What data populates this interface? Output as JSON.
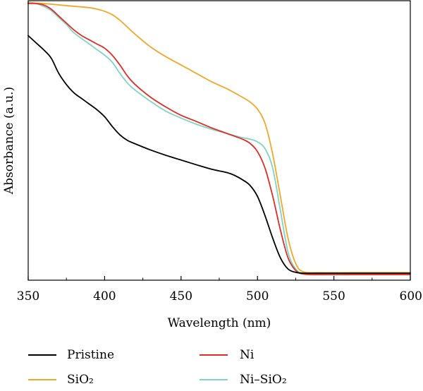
{
  "chart_data": {
    "type": "line",
    "title": "",
    "xlabel": "Wavelength (nm)",
    "ylabel": "Absorbance (a.u.)",
    "xlim": [
      350,
      600
    ],
    "ylim": [
      0,
      1
    ],
    "x_ticks": [
      350,
      400,
      450,
      500,
      550,
      600
    ],
    "x_tick_labels": [
      "350",
      "400",
      "450",
      "500",
      "550",
      "600"
    ],
    "y_ticks_shown": false,
    "grid": false,
    "legend_placement": "bottom",
    "series": [
      {
        "name": "Pristine",
        "color": "#000000",
        "points": [
          [
            350,
            0.875
          ],
          [
            355,
            0.85
          ],
          [
            360,
            0.825
          ],
          [
            365,
            0.795
          ],
          [
            370,
            0.74
          ],
          [
            375,
            0.7
          ],
          [
            380,
            0.67
          ],
          [
            385,
            0.65
          ],
          [
            390,
            0.63
          ],
          [
            395,
            0.61
          ],
          [
            400,
            0.585
          ],
          [
            405,
            0.55
          ],
          [
            410,
            0.52
          ],
          [
            415,
            0.5
          ],
          [
            420,
            0.488
          ],
          [
            430,
            0.466
          ],
          [
            440,
            0.447
          ],
          [
            450,
            0.43
          ],
          [
            460,
            0.413
          ],
          [
            470,
            0.397
          ],
          [
            480,
            0.385
          ],
          [
            485,
            0.375
          ],
          [
            490,
            0.36
          ],
          [
            495,
            0.34
          ],
          [
            500,
            0.3
          ],
          [
            505,
            0.23
          ],
          [
            510,
            0.15
          ],
          [
            515,
            0.08
          ],
          [
            520,
            0.04
          ],
          [
            525,
            0.028
          ],
          [
            530,
            0.025
          ],
          [
            540,
            0.025
          ],
          [
            560,
            0.025
          ],
          [
            580,
            0.025
          ],
          [
            600,
            0.025
          ]
        ]
      },
      {
        "name": "SiO₂",
        "color": "#f0a82a",
        "points": [
          [
            350,
            0.992
          ],
          [
            360,
            0.99
          ],
          [
            370,
            0.985
          ],
          [
            380,
            0.98
          ],
          [
            390,
            0.975
          ],
          [
            395,
            0.97
          ],
          [
            400,
            0.962
          ],
          [
            405,
            0.95
          ],
          [
            410,
            0.93
          ],
          [
            415,
            0.905
          ],
          [
            420,
            0.88
          ],
          [
            430,
            0.835
          ],
          [
            440,
            0.8
          ],
          [
            450,
            0.77
          ],
          [
            460,
            0.74
          ],
          [
            470,
            0.71
          ],
          [
            480,
            0.685
          ],
          [
            490,
            0.655
          ],
          [
            495,
            0.638
          ],
          [
            500,
            0.612
          ],
          [
            505,
            0.56
          ],
          [
            510,
            0.45
          ],
          [
            515,
            0.3
          ],
          [
            520,
            0.15
          ],
          [
            525,
            0.06
          ],
          [
            530,
            0.03
          ],
          [
            540,
            0.027
          ],
          [
            560,
            0.027
          ],
          [
            580,
            0.027
          ],
          [
            600,
            0.027
          ]
        ]
      },
      {
        "name": "Ni",
        "color": "#e02c27",
        "points": [
          [
            350,
            0.99
          ],
          [
            355,
            0.99
          ],
          [
            360,
            0.985
          ],
          [
            365,
            0.97
          ],
          [
            370,
            0.945
          ],
          [
            375,
            0.92
          ],
          [
            380,
            0.895
          ],
          [
            385,
            0.875
          ],
          [
            390,
            0.86
          ],
          [
            395,
            0.845
          ],
          [
            400,
            0.83
          ],
          [
            405,
            0.805
          ],
          [
            410,
            0.77
          ],
          [
            415,
            0.73
          ],
          [
            420,
            0.7
          ],
          [
            430,
            0.655
          ],
          [
            440,
            0.62
          ],
          [
            450,
            0.59
          ],
          [
            460,
            0.568
          ],
          [
            470,
            0.545
          ],
          [
            480,
            0.525
          ],
          [
            490,
            0.505
          ],
          [
            495,
            0.49
          ],
          [
            500,
            0.46
          ],
          [
            505,
            0.4
          ],
          [
            510,
            0.3
          ],
          [
            515,
            0.18
          ],
          [
            520,
            0.08
          ],
          [
            525,
            0.035
          ],
          [
            530,
            0.022
          ],
          [
            540,
            0.02
          ],
          [
            560,
            0.02
          ],
          [
            580,
            0.02
          ],
          [
            600,
            0.02
          ]
        ]
      },
      {
        "name": "Ni–SiO₂",
        "color": "#7fd4c4",
        "points": [
          [
            350,
            0.995
          ],
          [
            355,
            0.99
          ],
          [
            360,
            0.98
          ],
          [
            365,
            0.965
          ],
          [
            370,
            0.94
          ],
          [
            375,
            0.915
          ],
          [
            380,
            0.885
          ],
          [
            390,
            0.845
          ],
          [
            395,
            0.825
          ],
          [
            400,
            0.805
          ],
          [
            405,
            0.78
          ],
          [
            410,
            0.74
          ],
          [
            415,
            0.705
          ],
          [
            420,
            0.68
          ],
          [
            430,
            0.64
          ],
          [
            440,
            0.605
          ],
          [
            450,
            0.58
          ],
          [
            460,
            0.558
          ],
          [
            470,
            0.54
          ],
          [
            480,
            0.525
          ],
          [
            490,
            0.51
          ],
          [
            495,
            0.505
          ],
          [
            500,
            0.495
          ],
          [
            505,
            0.47
          ],
          [
            510,
            0.4
          ],
          [
            515,
            0.25
          ],
          [
            520,
            0.1
          ],
          [
            525,
            0.04
          ],
          [
            530,
            0.025
          ],
          [
            540,
            0.022
          ],
          [
            560,
            0.022
          ],
          [
            580,
            0.022
          ],
          [
            600,
            0.022
          ]
        ]
      }
    ]
  },
  "legend": {
    "items": [
      {
        "label": "Pristine",
        "color": "#000000"
      },
      {
        "label": "Ni",
        "color": "#e02c27"
      },
      {
        "label": "SiO₂",
        "color": "#f0a82a"
      },
      {
        "label": "Ni–SiO₂",
        "color": "#7fd4c4"
      }
    ]
  }
}
